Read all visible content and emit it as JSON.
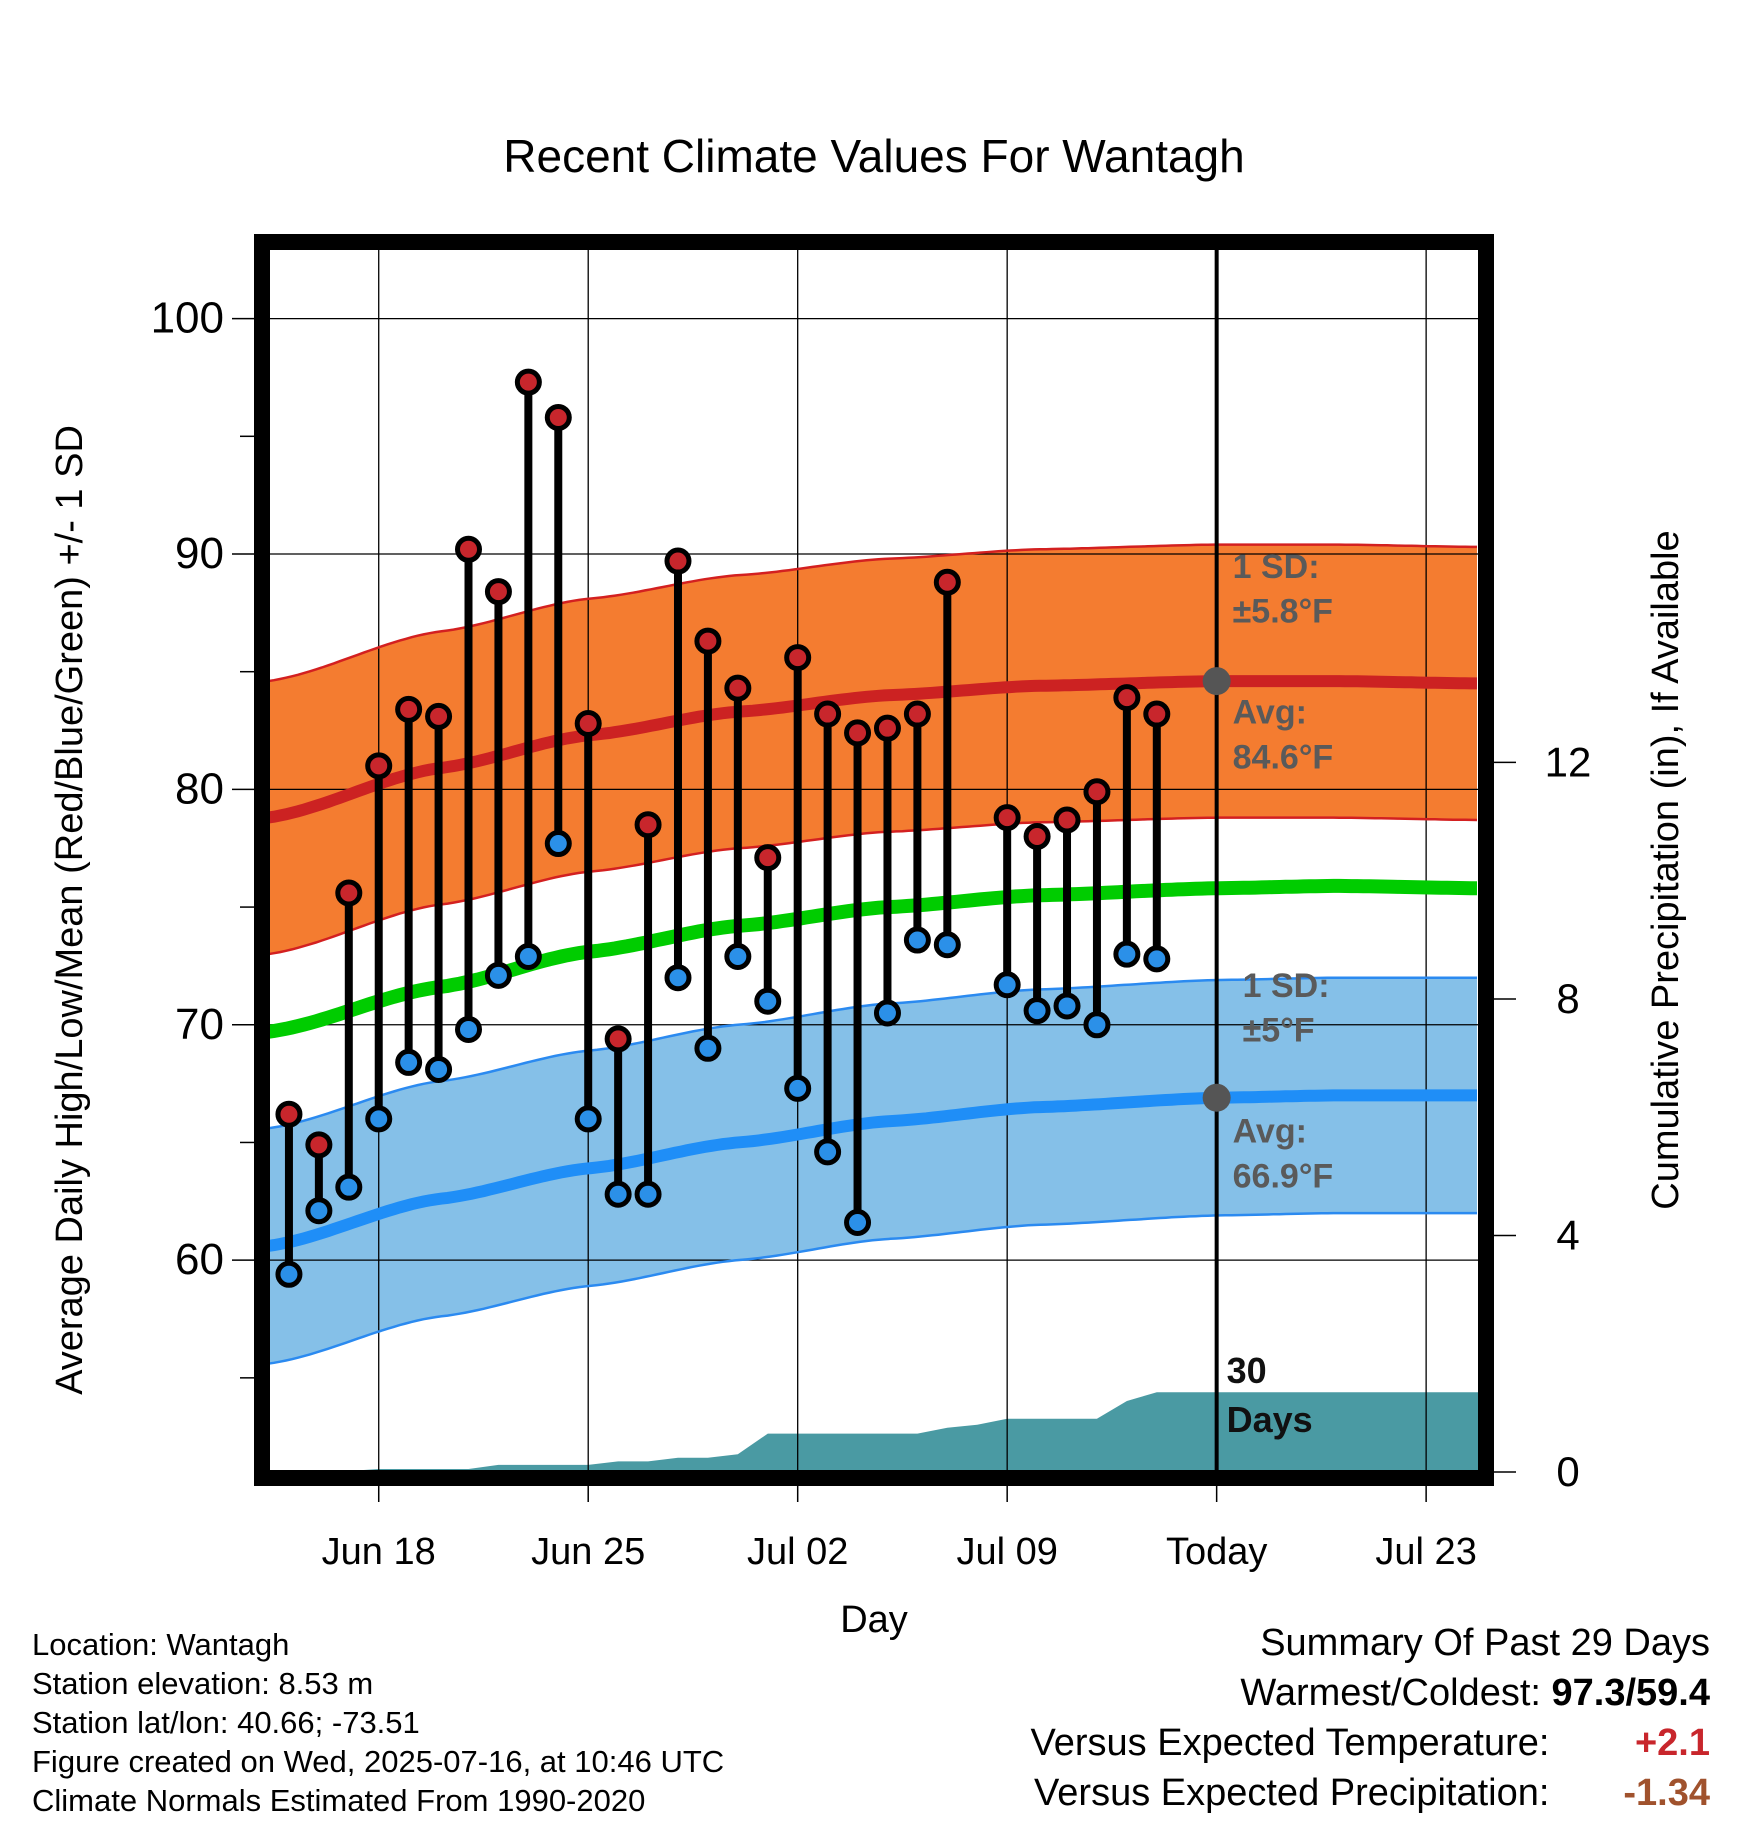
{
  "chart_data": {
    "type": "line",
    "title": "Recent Climate Values For Wantagh",
    "xlabel": "Day",
    "ylabel": "Average Daily High/Low/Mean (Red/Blue/Green) +/- 1 SD",
    "y2label": "Cumulative Precipitation (in), If Available",
    "ylim": [
      51,
      103
    ],
    "y2lim": [
      0,
      20.7
    ],
    "y_ticks": [
      "60",
      "70",
      "80",
      "90",
      "100"
    ],
    "y2_ticks": [
      "0",
      "4",
      "8",
      "12"
    ],
    "x_tick_labels": [
      "Jun 18",
      "Jun 25",
      "Jul 02",
      "Jul 09",
      "Today",
      "Jul 23"
    ],
    "x_tick_days": [
      3,
      10,
      17,
      24,
      31,
      38
    ],
    "today_day": 31,
    "x_range": [
      -0.7,
      39.8
    ],
    "observed_days": [
      0,
      1,
      2,
      3,
      4,
      5,
      6,
      7,
      8,
      9,
      10,
      11,
      12,
      13,
      14,
      15,
      16,
      17,
      18,
      19,
      20,
      21,
      22,
      23,
      24,
      25,
      26,
      27,
      28,
      29
    ],
    "observed_high": [
      66.2,
      64.9,
      75.6,
      81.0,
      83.4,
      83.1,
      90.2,
      88.4,
      97.3,
      95.8,
      82.8,
      69.4,
      78.5,
      89.7,
      86.3,
      84.3,
      77.1,
      85.6,
      83.2,
      82.4,
      82.6,
      83.2,
      88.8,
      null,
      78.8,
      78.0,
      78.7,
      79.9,
      83.9,
      83.2
    ],
    "observed_low": [
      59.4,
      62.1,
      63.1,
      66.0,
      68.4,
      68.1,
      69.8,
      72.1,
      72.9,
      77.7,
      66.0,
      62.8,
      62.8,
      72.0,
      69.0,
      72.9,
      71.0,
      67.3,
      64.6,
      61.6,
      70.5,
      73.6,
      73.4,
      null,
      71.7,
      70.6,
      70.8,
      70.0,
      73.0,
      72.8
    ],
    "series": [
      {
        "name": "Avg High",
        "x": [
          -0.7,
          5,
          10,
          15,
          20,
          25,
          31,
          35,
          39.8
        ],
        "values": [
          78.8,
          80.9,
          82.3,
          83.3,
          84.0,
          84.4,
          84.6,
          84.6,
          84.5
        ]
      },
      {
        "name": "Avg Low",
        "x": [
          -0.7,
          5,
          10,
          15,
          20,
          25,
          31,
          35,
          39.8
        ],
        "values": [
          60.6,
          62.6,
          63.9,
          65.0,
          65.9,
          66.5,
          66.9,
          67.0,
          67.0
        ]
      },
      {
        "name": "Avg Mean",
        "x": [
          -0.7,
          5,
          10,
          15,
          20,
          25,
          31,
          35,
          39.8
        ],
        "values": [
          69.7,
          71.6,
          73.1,
          74.2,
          75.0,
          75.5,
          75.8,
          75.9,
          75.8
        ]
      },
      {
        "name": "Cumulative Precipitation",
        "x": [
          -0.7,
          1.5,
          3,
          6,
          7,
          9,
          10,
          11,
          12,
          13,
          14,
          15,
          16,
          17,
          18,
          19,
          20,
          21,
          22,
          23,
          24,
          25,
          26,
          27,
          28,
          29,
          30,
          31,
          35,
          39.8
        ],
        "values": [
          0,
          0,
          0.05,
          0.05,
          0.12,
          0.12,
          0.12,
          0.18,
          0.18,
          0.24,
          0.24,
          0.3,
          0.65,
          0.65,
          0.65,
          0.65,
          0.65,
          0.65,
          0.75,
          0.8,
          0.9,
          0.9,
          0.9,
          0.9,
          1.2,
          1.35,
          1.35,
          1.35,
          1.35,
          1.35
        ]
      }
    ],
    "sd_high": 5.8,
    "sd_low": 5.0,
    "annotations": {
      "high_sd_label": "1 SD:",
      "high_sd_value": "±5.8°F",
      "high_avg_label": "Avg:",
      "high_avg_value": "84.6°F",
      "low_sd_label": "1 SD:",
      "low_sd_value": "±5°F",
      "low_avg_label": "Avg:",
      "low_avg_value": "66.9°F",
      "days_label_1": "30",
      "days_label_2": "Days"
    },
    "colors": {
      "high_band": "#f47c30",
      "high_edge": "#d32020",
      "high_avg": "#cc2222",
      "low_band": "#85c0e8",
      "low_edge": "#2b8af0",
      "low_avg": "#1f8ef7",
      "mean": "#00cc00",
      "precip": "#4a9aa3",
      "high_dot": "#c8262c",
      "low_dot": "#2b90e8",
      "label_gray": "#5a5a5a",
      "today_dot": "#555555"
    },
    "grid": true
  },
  "footer": {
    "location": "Location: Wantagh",
    "elevation": "Station elevation: 8.53 m",
    "latlon": "Station lat/lon: 40.66; -73.51",
    "created": "Figure created on Wed, 2025-07-16, at 10:46 UTC",
    "normals": "Climate Normals Estimated From 1990-2020"
  },
  "summary": {
    "title": "Summary Of Past 29 Days",
    "warm_label": "Warmest/Coldest:",
    "warm_value": "97.3/59.4",
    "temp_label": "Versus Expected Temperature:",
    "temp_value": "+2.1",
    "precip_label": "Versus Expected Precipitation:",
    "precip_value": "-1.34"
  }
}
